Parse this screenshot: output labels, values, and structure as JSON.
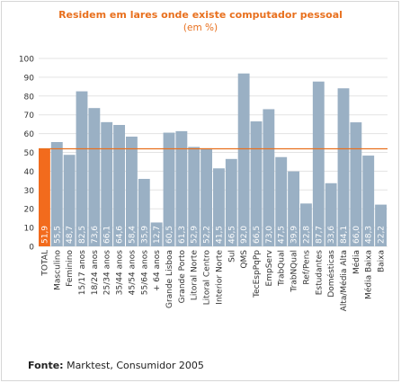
{
  "chart_data": {
    "type": "bar",
    "title": "Residem em lares onde existe computador pessoal",
    "subtitle": "(em %)",
    "ylim": [
      0,
      100
    ],
    "yticks": [
      0,
      10,
      20,
      30,
      40,
      50,
      60,
      70,
      80,
      90,
      100
    ],
    "grid": true,
    "reference_line": 51.9,
    "categories": [
      "TOTAL",
      "Masculino",
      "Feminino",
      "15/17 anos",
      "18/24 anos",
      "25/34 anos",
      "35/44 anos",
      "45/54 anos",
      "55/64 anos",
      "+ 64 anos",
      "Grande Lisboa",
      "Grande Porto",
      "Litoral Norte",
      "Litoral Centro",
      "Interior Norte",
      "Sul",
      "QMS",
      "TecEspPqPp",
      "EmpServ",
      "TrabQual",
      "TrabNQual",
      "Ref/Pens",
      "Estudantes",
      "Domésticas",
      "Alta/Média Alta",
      "Média",
      "Média Baixa",
      "Baixa"
    ],
    "values": [
      51.9,
      55.5,
      48.7,
      82.5,
      73.6,
      66.1,
      64.6,
      58.4,
      35.9,
      12.7,
      60.5,
      61.3,
      52.9,
      52.2,
      41.5,
      46.5,
      92.0,
      66.5,
      73.0,
      47.5,
      39.9,
      22.8,
      87.7,
      33.6,
      84.1,
      66.0,
      48.3,
      22.2
    ],
    "value_labels": [
      "51,9",
      "55,5",
      "48,7",
      "82,5",
      "73,6",
      "66,1",
      "64,6",
      "58,4",
      "35,9",
      "12,7",
      "60,5",
      "61,3",
      "52,9",
      "52,2",
      "41,5",
      "46,5",
      "92,0",
      "66,5",
      "73,0",
      "47,5",
      "39,9",
      "22,8",
      "87,7",
      "33,6",
      "84,1",
      "66,0",
      "48,3",
      "22,2"
    ],
    "colors": {
      "highlight": "#f26b1d",
      "bar": "#9ab0c4",
      "reference_line": "#e8701e",
      "grid": "#e3e3e3",
      "title": "#e8701e"
    }
  },
  "source": {
    "label": "Fonte:",
    "text": "Marktest, Consumidor 2005"
  }
}
